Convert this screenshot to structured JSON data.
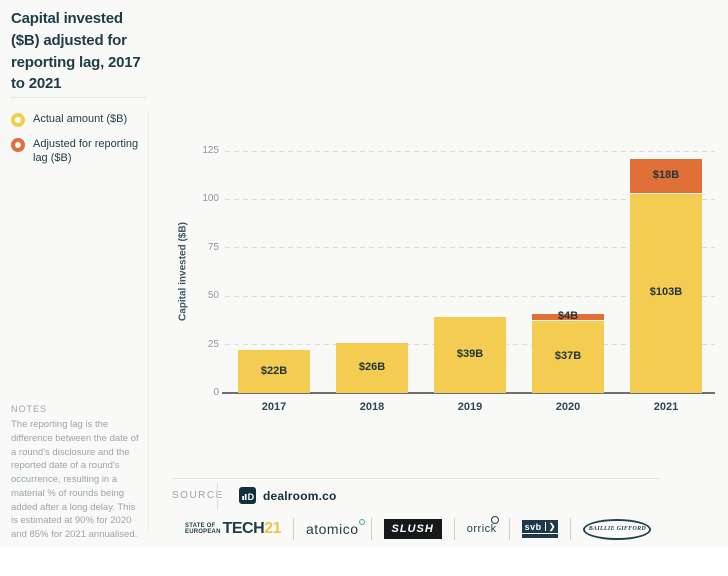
{
  "header": {
    "title": "Capital invested ($B) adjusted for reporting lag, 2017 to 2021"
  },
  "legend": {
    "items": [
      {
        "label": "Actual amount ($B)",
        "color": "#F3CC51"
      },
      {
        "label": "Adjusted for reporting lag ($B)",
        "color": "#E07038"
      }
    ]
  },
  "notes": {
    "heading": "NOTES",
    "body": "The reporting lag is the difference between the date of a round's disclosure and the reported date of a round's occurrence, resulting in a material % of rounds being added after a long delay. This is estimated at 90% for 2020 and 85% for 2021 annualised."
  },
  "chart_data": {
    "type": "bar",
    "stacked": true,
    "title": "Capital invested ($B) adjusted for reporting lag, 2017 to 2021",
    "categories": [
      "2017",
      "2018",
      "2019",
      "2020",
      "2021"
    ],
    "series": [
      {
        "name": "Actual amount ($B)",
        "color": "#F3CC51",
        "values": [
          22,
          26,
          39,
          37,
          103
        ],
        "labels": [
          "$22B",
          "$26B",
          "$39B",
          "$37B",
          "$103B"
        ]
      },
      {
        "name": "Adjusted for reporting lag ($B)",
        "color": "#E07038",
        "values": [
          0,
          0,
          0,
          4,
          18
        ],
        "labels": [
          "",
          "",
          "",
          "$4B",
          "$18B"
        ]
      }
    ],
    "ylabel": "Capital invested ($B)",
    "yticks": [
      0,
      25,
      50,
      75,
      100,
      125
    ],
    "ylim": [
      0,
      125
    ],
    "grid": "horizontal-dashed",
    "legend_position": "left"
  },
  "footer": {
    "source_label": "SOURCE",
    "source_brand": "dealroom.co",
    "logos": {
      "soet": {
        "line1": "STATE OF",
        "line2": "EUROPEAN",
        "tech": "TECH",
        "year": "21"
      },
      "atomico": "atomico",
      "slush": "SLUSH",
      "orrick": "orrick",
      "svb": "svb",
      "svb_arrow": "❯",
      "baillie": "BAILLIE GIFFORD"
    }
  },
  "colors": {
    "accent_yellow": "#F3CC51",
    "accent_orange": "#E07038",
    "navy": "#1D3D47"
  }
}
